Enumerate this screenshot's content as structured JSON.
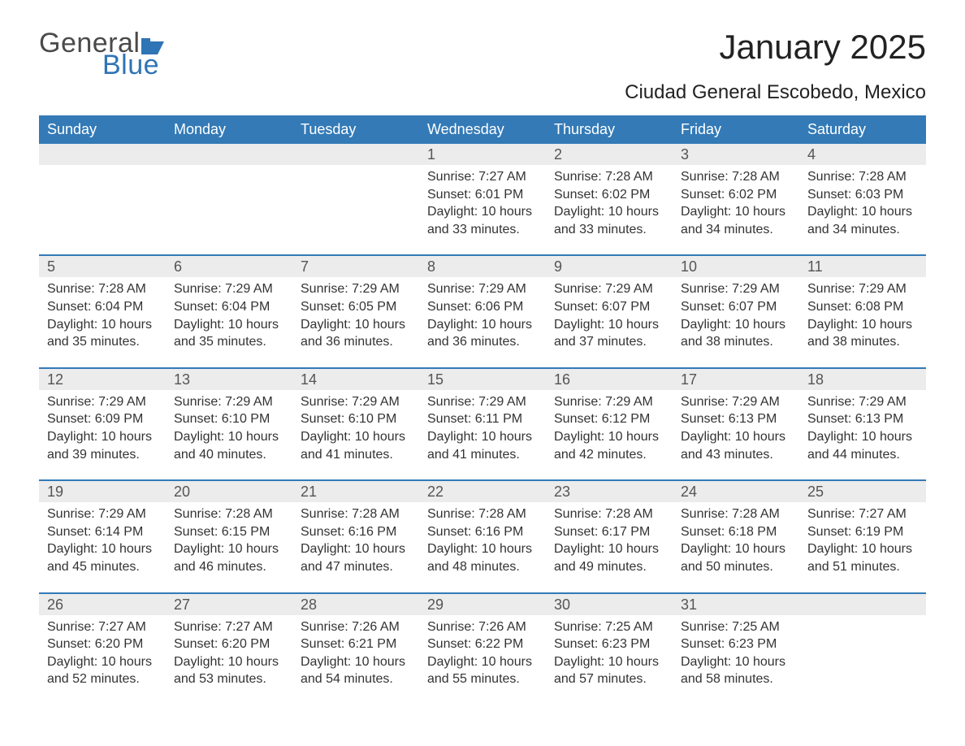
{
  "logo": {
    "word1": "General",
    "word2": "Blue",
    "flag_color": "#2f74b5",
    "text_gray": "#4a4a4a"
  },
  "title": "January 2025",
  "location": "Ciudad General Escobedo, Mexico",
  "colors": {
    "header_bg": "#337ab7",
    "header_text": "#ffffff",
    "daynum_bg": "#ececec",
    "daynum_text": "#555555",
    "body_text": "#333333",
    "week_border": "#337ab7",
    "page_bg": "#ffffff"
  },
  "fonts": {
    "title_size_pt": 32,
    "location_size_pt": 18,
    "dow_size_pt": 14,
    "daynum_size_pt": 14,
    "cell_size_pt": 12
  },
  "days_of_week": [
    "Sunday",
    "Monday",
    "Tuesday",
    "Wednesday",
    "Thursday",
    "Friday",
    "Saturday"
  ],
  "weeks": [
    [
      null,
      null,
      null,
      {
        "n": "1",
        "sr": "Sunrise: 7:27 AM",
        "ss": "Sunset: 6:01 PM",
        "d1": "Daylight: 10 hours",
        "d2": "and 33 minutes."
      },
      {
        "n": "2",
        "sr": "Sunrise: 7:28 AM",
        "ss": "Sunset: 6:02 PM",
        "d1": "Daylight: 10 hours",
        "d2": "and 33 minutes."
      },
      {
        "n": "3",
        "sr": "Sunrise: 7:28 AM",
        "ss": "Sunset: 6:02 PM",
        "d1": "Daylight: 10 hours",
        "d2": "and 34 minutes."
      },
      {
        "n": "4",
        "sr": "Sunrise: 7:28 AM",
        "ss": "Sunset: 6:03 PM",
        "d1": "Daylight: 10 hours",
        "d2": "and 34 minutes."
      }
    ],
    [
      {
        "n": "5",
        "sr": "Sunrise: 7:28 AM",
        "ss": "Sunset: 6:04 PM",
        "d1": "Daylight: 10 hours",
        "d2": "and 35 minutes."
      },
      {
        "n": "6",
        "sr": "Sunrise: 7:29 AM",
        "ss": "Sunset: 6:04 PM",
        "d1": "Daylight: 10 hours",
        "d2": "and 35 minutes."
      },
      {
        "n": "7",
        "sr": "Sunrise: 7:29 AM",
        "ss": "Sunset: 6:05 PM",
        "d1": "Daylight: 10 hours",
        "d2": "and 36 minutes."
      },
      {
        "n": "8",
        "sr": "Sunrise: 7:29 AM",
        "ss": "Sunset: 6:06 PM",
        "d1": "Daylight: 10 hours",
        "d2": "and 36 minutes."
      },
      {
        "n": "9",
        "sr": "Sunrise: 7:29 AM",
        "ss": "Sunset: 6:07 PM",
        "d1": "Daylight: 10 hours",
        "d2": "and 37 minutes."
      },
      {
        "n": "10",
        "sr": "Sunrise: 7:29 AM",
        "ss": "Sunset: 6:07 PM",
        "d1": "Daylight: 10 hours",
        "d2": "and 38 minutes."
      },
      {
        "n": "11",
        "sr": "Sunrise: 7:29 AM",
        "ss": "Sunset: 6:08 PM",
        "d1": "Daylight: 10 hours",
        "d2": "and 38 minutes."
      }
    ],
    [
      {
        "n": "12",
        "sr": "Sunrise: 7:29 AM",
        "ss": "Sunset: 6:09 PM",
        "d1": "Daylight: 10 hours",
        "d2": "and 39 minutes."
      },
      {
        "n": "13",
        "sr": "Sunrise: 7:29 AM",
        "ss": "Sunset: 6:10 PM",
        "d1": "Daylight: 10 hours",
        "d2": "and 40 minutes."
      },
      {
        "n": "14",
        "sr": "Sunrise: 7:29 AM",
        "ss": "Sunset: 6:10 PM",
        "d1": "Daylight: 10 hours",
        "d2": "and 41 minutes."
      },
      {
        "n": "15",
        "sr": "Sunrise: 7:29 AM",
        "ss": "Sunset: 6:11 PM",
        "d1": "Daylight: 10 hours",
        "d2": "and 41 minutes."
      },
      {
        "n": "16",
        "sr": "Sunrise: 7:29 AM",
        "ss": "Sunset: 6:12 PM",
        "d1": "Daylight: 10 hours",
        "d2": "and 42 minutes."
      },
      {
        "n": "17",
        "sr": "Sunrise: 7:29 AM",
        "ss": "Sunset: 6:13 PM",
        "d1": "Daylight: 10 hours",
        "d2": "and 43 minutes."
      },
      {
        "n": "18",
        "sr": "Sunrise: 7:29 AM",
        "ss": "Sunset: 6:13 PM",
        "d1": "Daylight: 10 hours",
        "d2": "and 44 minutes."
      }
    ],
    [
      {
        "n": "19",
        "sr": "Sunrise: 7:29 AM",
        "ss": "Sunset: 6:14 PM",
        "d1": "Daylight: 10 hours",
        "d2": "and 45 minutes."
      },
      {
        "n": "20",
        "sr": "Sunrise: 7:28 AM",
        "ss": "Sunset: 6:15 PM",
        "d1": "Daylight: 10 hours",
        "d2": "and 46 minutes."
      },
      {
        "n": "21",
        "sr": "Sunrise: 7:28 AM",
        "ss": "Sunset: 6:16 PM",
        "d1": "Daylight: 10 hours",
        "d2": "and 47 minutes."
      },
      {
        "n": "22",
        "sr": "Sunrise: 7:28 AM",
        "ss": "Sunset: 6:16 PM",
        "d1": "Daylight: 10 hours",
        "d2": "and 48 minutes."
      },
      {
        "n": "23",
        "sr": "Sunrise: 7:28 AM",
        "ss": "Sunset: 6:17 PM",
        "d1": "Daylight: 10 hours",
        "d2": "and 49 minutes."
      },
      {
        "n": "24",
        "sr": "Sunrise: 7:28 AM",
        "ss": "Sunset: 6:18 PM",
        "d1": "Daylight: 10 hours",
        "d2": "and 50 minutes."
      },
      {
        "n": "25",
        "sr": "Sunrise: 7:27 AM",
        "ss": "Sunset: 6:19 PM",
        "d1": "Daylight: 10 hours",
        "d2": "and 51 minutes."
      }
    ],
    [
      {
        "n": "26",
        "sr": "Sunrise: 7:27 AM",
        "ss": "Sunset: 6:20 PM",
        "d1": "Daylight: 10 hours",
        "d2": "and 52 minutes."
      },
      {
        "n": "27",
        "sr": "Sunrise: 7:27 AM",
        "ss": "Sunset: 6:20 PM",
        "d1": "Daylight: 10 hours",
        "d2": "and 53 minutes."
      },
      {
        "n": "28",
        "sr": "Sunrise: 7:26 AM",
        "ss": "Sunset: 6:21 PM",
        "d1": "Daylight: 10 hours",
        "d2": "and 54 minutes."
      },
      {
        "n": "29",
        "sr": "Sunrise: 7:26 AM",
        "ss": "Sunset: 6:22 PM",
        "d1": "Daylight: 10 hours",
        "d2": "and 55 minutes."
      },
      {
        "n": "30",
        "sr": "Sunrise: 7:25 AM",
        "ss": "Sunset: 6:23 PM",
        "d1": "Daylight: 10 hours",
        "d2": "and 57 minutes."
      },
      {
        "n": "31",
        "sr": "Sunrise: 7:25 AM",
        "ss": "Sunset: 6:23 PM",
        "d1": "Daylight: 10 hours",
        "d2": "and 58 minutes."
      },
      null
    ]
  ]
}
